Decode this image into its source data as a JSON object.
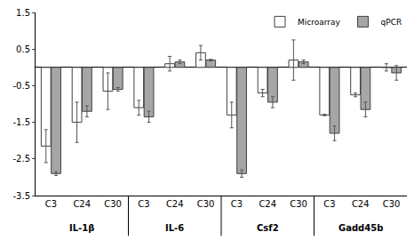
{
  "chart_data": {
    "type": "bar",
    "categories": [
      "C3",
      "C24",
      "C30",
      "C3",
      "C24",
      "C30",
      "C3",
      "C24",
      "C30",
      "C3",
      "C24",
      "C30"
    ],
    "groups": [
      "IL-1β",
      "IL-1β",
      "IL-1β",
      "IL-6",
      "IL-6",
      "IL-6",
      "Csf2",
      "Csf2",
      "Csf2",
      "Gadd45b",
      "Gadd45b",
      "Gadd45b"
    ],
    "series": [
      {
        "name": "Microarray",
        "color": "#ffffff",
        "values": [
          -2.15,
          -1.5,
          -0.65,
          -1.1,
          0.1,
          0.4,
          -1.3,
          -0.7,
          0.2,
          -1.3,
          -0.75,
          0.0
        ],
        "errors": [
          0.45,
          0.55,
          0.5,
          0.2,
          0.2,
          0.2,
          0.35,
          0.1,
          0.55,
          0.02,
          0.05,
          0.1
        ]
      },
      {
        "name": "qPCR",
        "color": "#a6a6a6",
        "values": [
          -2.9,
          -1.2,
          -0.6,
          -1.35,
          0.15,
          0.2,
          -2.9,
          -0.95,
          0.15,
          -1.8,
          -1.15,
          -0.15
        ],
        "errors": [
          0.05,
          0.15,
          0.05,
          0.15,
          0.05,
          0.02,
          0.1,
          0.15,
          0.05,
          0.2,
          0.2,
          0.2
        ]
      }
    ],
    "ylim": [
      -3.5,
      1.5
    ],
    "yticks": [
      -3.5,
      -2.5,
      -1.5,
      -0.5,
      0.5,
      1.5
    ],
    "grid": false,
    "legend": "upper right"
  }
}
